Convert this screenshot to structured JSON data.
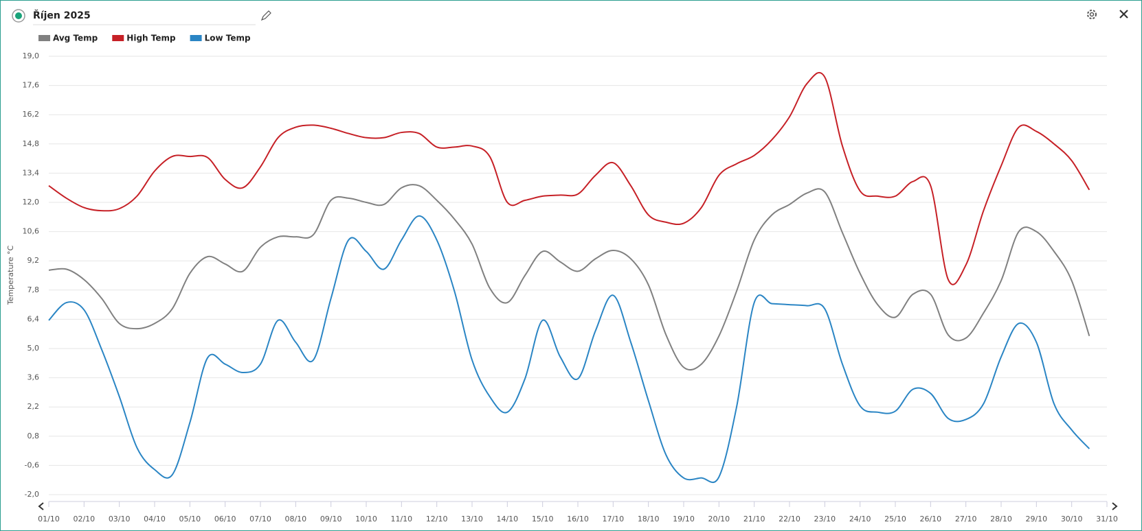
{
  "chart_data": {
    "type": "line",
    "title": "Říjen 2025",
    "y_label": "Temperature °C",
    "categories": [
      "01/10",
      null,
      "02/10",
      null,
      "03/10",
      null,
      "04/10",
      null,
      "05/10",
      null,
      "06/10",
      null,
      "07/10",
      null,
      "08/10",
      null,
      "09/10",
      null,
      "10/10",
      null,
      "11/10",
      null,
      "12/10",
      null,
      "13/10",
      null,
      "14/10",
      null,
      "15/10",
      null,
      "16/10",
      null,
      "17/10",
      null,
      "18/10",
      null,
      "19/10",
      null,
      "20/10",
      null,
      "21/10",
      null,
      "22/10",
      null,
      "23/10",
      null,
      "24/10",
      null,
      "25/10",
      null,
      "26/10",
      null,
      "27/10",
      null,
      "28/10",
      null,
      "29/10",
      null,
      "30/10",
      null,
      "31/10"
    ],
    "series": [
      {
        "name": "Avg Temp",
        "color": "#808080",
        "values": [
          8.75,
          8.8,
          8.3,
          7.4,
          6.2,
          5.95,
          6.2,
          6.9,
          8.6,
          9.4,
          9.05,
          8.7,
          9.85,
          10.35,
          10.35,
          10.45,
          12.1,
          12.2,
          12.0,
          11.9,
          12.7,
          12.8,
          12.1,
          11.2,
          10.0,
          7.9,
          7.2,
          8.5,
          9.65,
          9.15,
          8.7,
          9.3,
          9.7,
          9.3,
          8.05,
          5.65,
          4.1,
          4.25,
          5.6,
          7.75,
          10.2,
          11.4,
          11.9,
          12.45,
          12.5,
          10.55,
          8.6,
          7.1,
          6.5,
          7.6,
          7.6,
          5.65,
          5.5,
          6.7,
          8.25,
          10.6,
          10.6,
          9.65,
          8.25,
          5.6,
          null
        ]
      },
      {
        "name": "High Temp",
        "color": "#c62026",
        "values": [
          12.8,
          12.2,
          11.75,
          11.6,
          11.7,
          12.3,
          13.5,
          14.2,
          14.2,
          14.15,
          13.1,
          12.7,
          13.7,
          15.1,
          15.6,
          15.7,
          15.55,
          15.3,
          15.1,
          15.1,
          15.35,
          15.3,
          14.65,
          14.65,
          14.7,
          14.2,
          12.0,
          12.1,
          12.3,
          12.35,
          12.4,
          13.3,
          13.9,
          12.8,
          11.4,
          11.05,
          11.0,
          11.75,
          13.3,
          13.85,
          14.25,
          15.0,
          16.1,
          17.7,
          18.0,
          14.7,
          12.55,
          12.3,
          12.3,
          13.0,
          12.8,
          8.3,
          9.0,
          11.6,
          13.75,
          15.6,
          15.4,
          14.8,
          14.0,
          12.6,
          null
        ]
      },
      {
        "name": "Low Temp",
        "color": "#2a85c4",
        "values": [
          6.35,
          7.2,
          6.85,
          4.95,
          2.7,
          0.25,
          -0.8,
          -1.05,
          1.45,
          4.55,
          4.25,
          3.85,
          4.25,
          6.35,
          5.3,
          4.45,
          7.4,
          10.2,
          9.65,
          8.8,
          10.2,
          11.35,
          10.2,
          7.75,
          4.45,
          2.7,
          1.95,
          3.55,
          6.35,
          4.6,
          3.55,
          5.85,
          7.55,
          5.3,
          2.5,
          -0.1,
          -1.2,
          -1.2,
          -1.15,
          2.2,
          7.2,
          7.15,
          7.1,
          7.05,
          6.9,
          4.25,
          2.25,
          1.95,
          2.0,
          3.05,
          2.85,
          1.65,
          1.6,
          2.35,
          4.6,
          6.2,
          5.3,
          2.35,
          1.1,
          0.2,
          null
        ]
      }
    ],
    "ylim": [
      -2.0,
      19.0
    ],
    "yticks": [
      {
        "value": -2.0,
        "label": "-2,0"
      },
      {
        "value": -0.6,
        "label": "-0,6"
      },
      {
        "value": 0.8,
        "label": "0,8"
      },
      {
        "value": 2.2,
        "label": "2,2"
      },
      {
        "value": 3.6,
        "label": "3,6"
      },
      {
        "value": 5.0,
        "label": "5,0"
      },
      {
        "value": 6.4,
        "label": "6,4"
      },
      {
        "value": 7.8,
        "label": "7,8"
      },
      {
        "value": 9.2,
        "label": "9,2"
      },
      {
        "value": 10.6,
        "label": "10,6"
      },
      {
        "value": 12.0,
        "label": "12,0"
      },
      {
        "value": 13.4,
        "label": "13,4"
      },
      {
        "value": 14.8,
        "label": "14,8"
      },
      {
        "value": 16.2,
        "label": "16,2"
      },
      {
        "value": 17.6,
        "label": "17,6"
      },
      {
        "value": 19.0,
        "label": "19,0"
      }
    ],
    "grid": true,
    "legend": "top-left"
  }
}
